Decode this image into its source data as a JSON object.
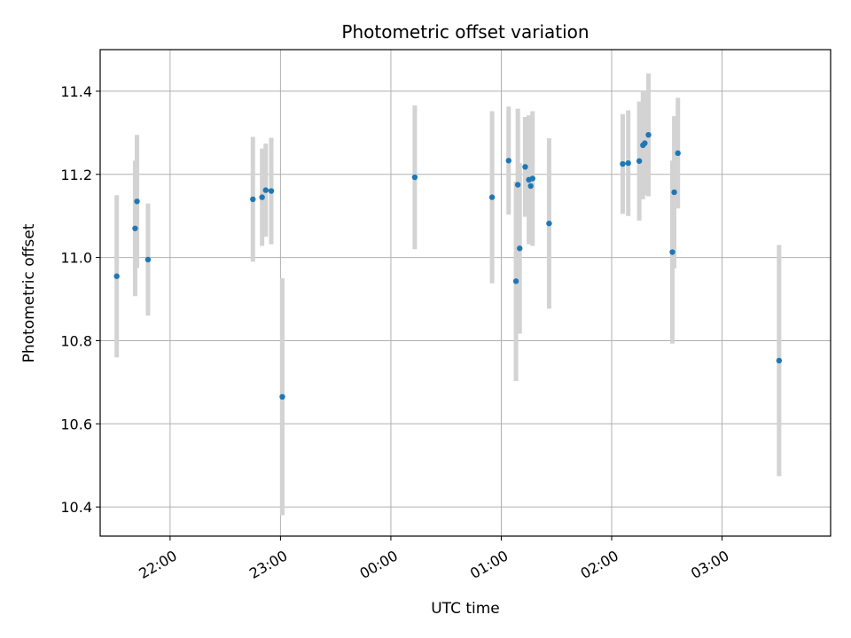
{
  "chart_data": {
    "type": "scatter",
    "title": "Photometric offset variation",
    "xlabel": "UTC time",
    "ylabel": "Photometric offset",
    "x_axis_kind": "time",
    "x_range": [
      "21:22",
      "03:59"
    ],
    "ylim": [
      10.33,
      11.5
    ],
    "x_ticks": [
      "22:00",
      "23:00",
      "00:00",
      "01:00",
      "02:00",
      "03:00"
    ],
    "y_ticks": [
      10.4,
      10.6,
      10.8,
      11.0,
      11.2,
      11.4
    ],
    "grid": true,
    "legend": "none",
    "colors": {
      "points": "#1f77b4",
      "errorbars": "#d3d3d3",
      "grid": "#b0b0b0"
    },
    "series": [
      {
        "points": [
          {
            "x": "21:31",
            "y": 10.955,
            "err": 0.195
          },
          {
            "x": "21:41",
            "y": 11.07,
            "err": 0.163
          },
          {
            "x": "21:42",
            "y": 11.135,
            "err": 0.16
          },
          {
            "x": "21:48",
            "y": 10.995,
            "err": 0.135
          },
          {
            "x": "22:45",
            "y": 11.14,
            "err": 0.15
          },
          {
            "x": "22:50",
            "y": 11.145,
            "err": 0.117
          },
          {
            "x": "22:52",
            "y": 11.162,
            "err": 0.112
          },
          {
            "x": "22:55",
            "y": 11.16,
            "err": 0.128
          },
          {
            "x": "23:01",
            "y": 10.665,
            "err": 0.285
          },
          {
            "x": "00:13",
            "y": 11.193,
            "err": 0.173
          },
          {
            "x": "00:55",
            "y": 11.145,
            "err": 0.207
          },
          {
            "x": "01:04",
            "y": 11.233,
            "err": 0.13
          },
          {
            "x": "01:08",
            "y": 10.943,
            "err": 0.24
          },
          {
            "x": "01:09",
            "y": 11.175,
            "err": 0.183
          },
          {
            "x": "01:10",
            "y": 11.022,
            "err": 0.205
          },
          {
            "x": "01:13",
            "y": 11.218,
            "err": 0.12
          },
          {
            "x": "01:15",
            "y": 11.187,
            "err": 0.155
          },
          {
            "x": "01:16",
            "y": 11.172,
            "err": 0.138
          },
          {
            "x": "01:17",
            "y": 11.19,
            "err": 0.162
          },
          {
            "x": "01:26",
            "y": 11.082,
            "err": 0.205
          },
          {
            "x": "02:06",
            "y": 11.225,
            "err": 0.12
          },
          {
            "x": "02:09",
            "y": 11.227,
            "err": 0.127
          },
          {
            "x": "02:15",
            "y": 11.232,
            "err": 0.143
          },
          {
            "x": "02:17",
            "y": 11.27,
            "err": 0.13
          },
          {
            "x": "02:18",
            "y": 11.275,
            "err": 0.125
          },
          {
            "x": "02:20",
            "y": 11.295,
            "err": 0.148
          },
          {
            "x": "02:33",
            "y": 11.013,
            "err": 0.22
          },
          {
            "x": "02:34",
            "y": 11.157,
            "err": 0.183
          },
          {
            "x": "02:36",
            "y": 11.251,
            "err": 0.133
          },
          {
            "x": "03:31",
            "y": 10.752,
            "err": 0.278
          }
        ]
      }
    ]
  }
}
